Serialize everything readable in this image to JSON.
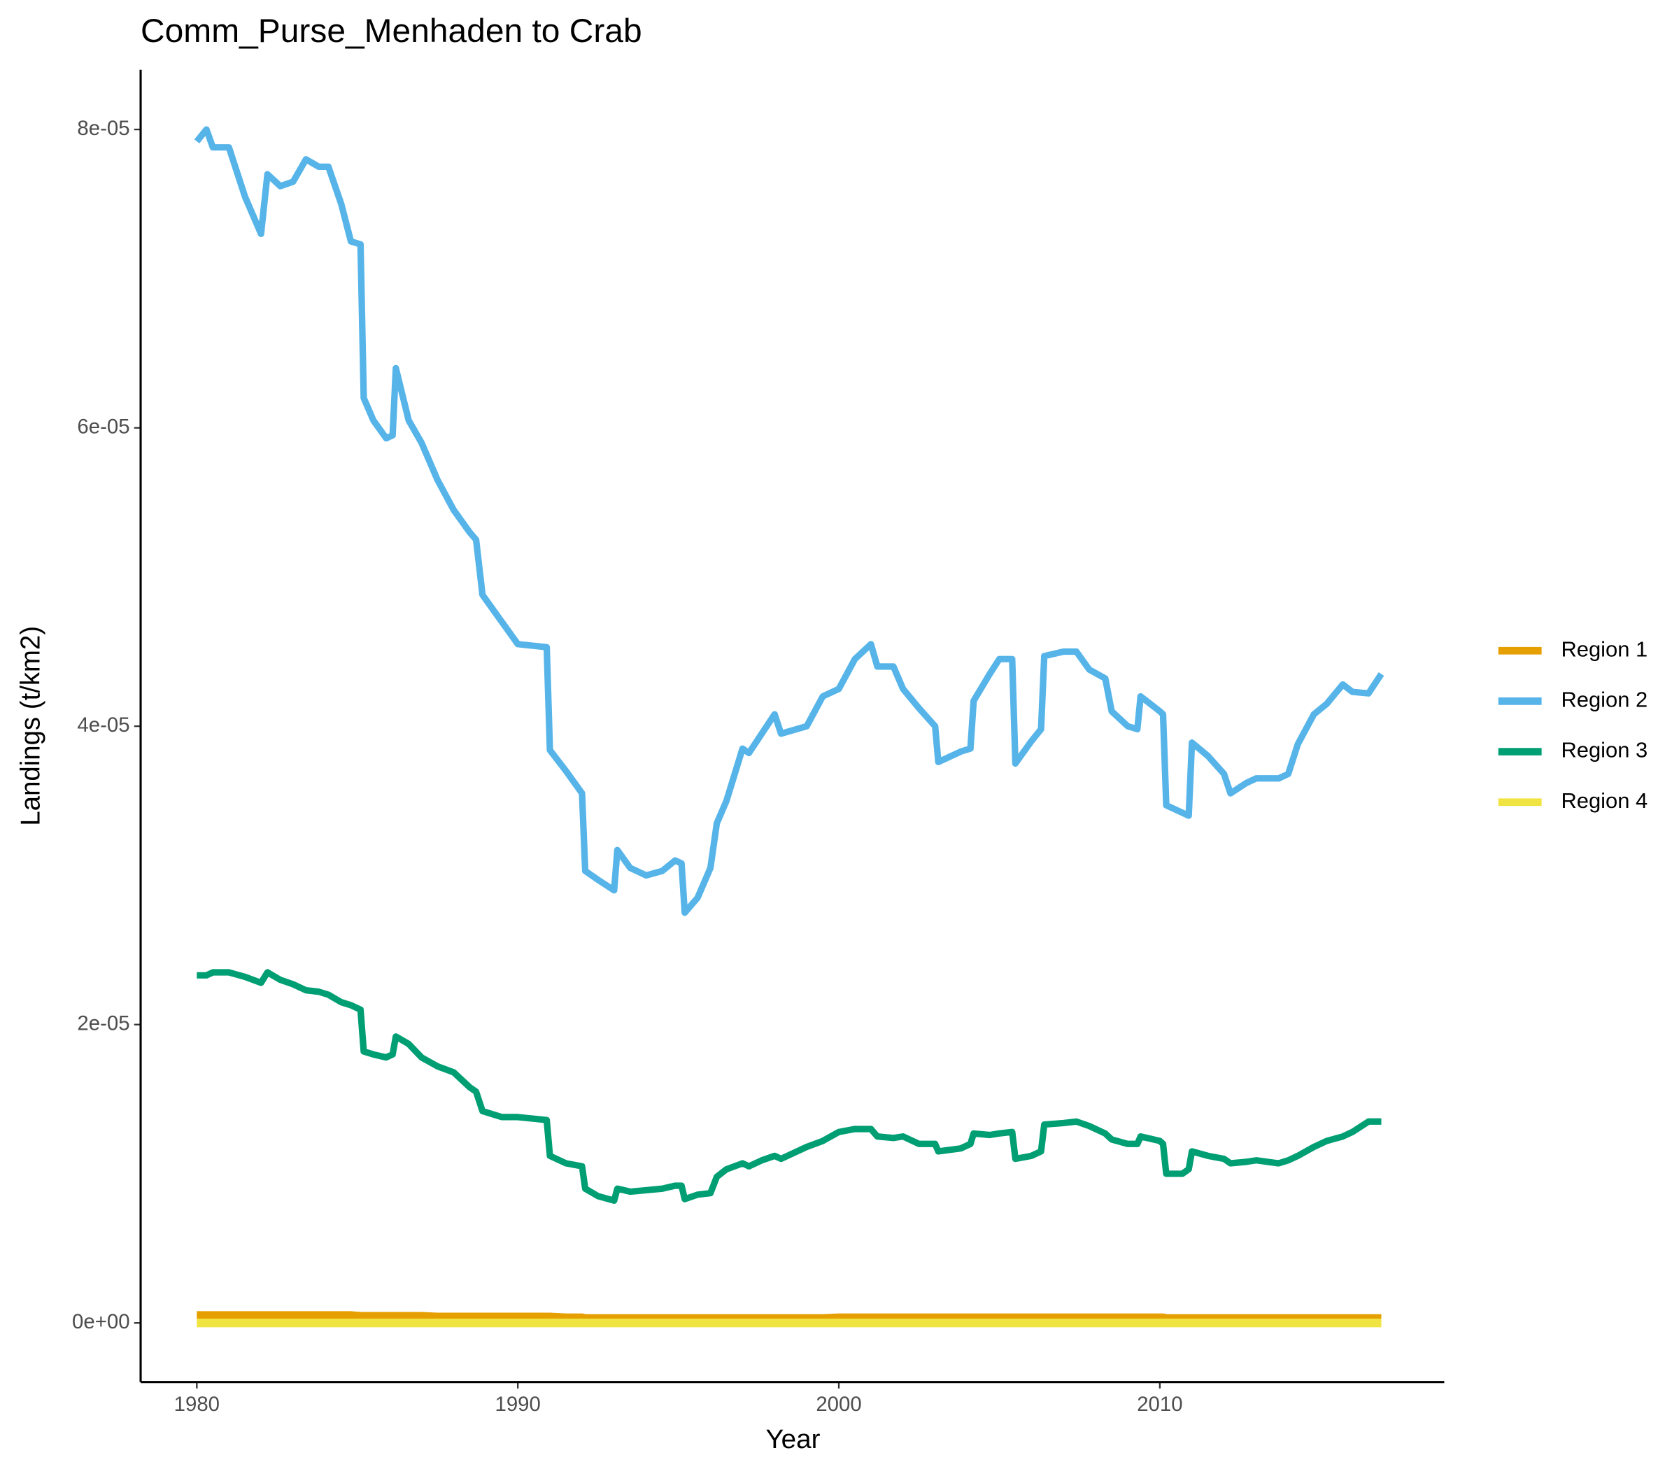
{
  "chart_data": {
    "type": "line",
    "title": "Comm_Purse_Menhaden to Crab",
    "x_label": "Year",
    "y_label": "Landings (t/km2)",
    "x": [
      1980.0,
      1980.3,
      1980.5,
      1981.0,
      1981.5,
      1982.0,
      1982.2,
      1982.6,
      1983.0,
      1983.4,
      1983.8,
      1984.1,
      1984.5,
      1984.8,
      1985.1,
      1985.2,
      1985.5,
      1985.9,
      1986.1,
      1986.2,
      1986.6,
      1987.0,
      1987.5,
      1988.0,
      1988.5,
      1988.7,
      1988.9,
      1989.5,
      1990.0,
      1990.9,
      1991.0,
      1991.5,
      1992.0,
      1992.1,
      1992.5,
      1993.0,
      1993.1,
      1993.5,
      1994.0,
      1994.5,
      1994.9,
      1995.1,
      1995.2,
      1995.6,
      1996.0,
      1996.2,
      1996.5,
      1997.0,
      1997.2,
      1997.6,
      1998.0,
      1998.2,
      1999.0,
      1999.5,
      2000.0,
      2000.5,
      2001.0,
      2001.2,
      2001.7,
      2002.0,
      2002.5,
      2003.0,
      2003.1,
      2003.8,
      2004.1,
      2004.2,
      2004.7,
      2005.0,
      2005.4,
      2005.5,
      2006.0,
      2006.3,
      2006.4,
      2007.0,
      2007.4,
      2007.8,
      2008.3,
      2008.5,
      2009.0,
      2009.3,
      2009.4,
      2010.0,
      2010.1,
      2010.2,
      2010.7,
      2010.9,
      2011.0,
      2011.5,
      2012.0,
      2012.2,
      2012.7,
      2013.0,
      2013.7,
      2014.0,
      2014.3,
      2014.8,
      2015.2,
      2015.7,
      2016.0,
      2016.5,
      2016.9
    ],
    "series": [
      {
        "name": "Region 1",
        "color": "#E69F00",
        "values": [
          5e-07,
          5e-07,
          5e-07,
          5e-07,
          5e-07,
          5e-07,
          5e-07,
          5e-07,
          5e-07,
          5e-07,
          5e-07,
          5e-07,
          5e-07,
          5e-07,
          4.5e-07,
          4.5e-07,
          4.5e-07,
          4.5e-07,
          4.5e-07,
          4.5e-07,
          4.5e-07,
          4.5e-07,
          4e-07,
          4e-07,
          4e-07,
          4e-07,
          4e-07,
          4e-07,
          4e-07,
          4e-07,
          4e-07,
          3.5e-07,
          3.5e-07,
          3e-07,
          3e-07,
          3e-07,
          3e-07,
          3e-07,
          3e-07,
          3e-07,
          3e-07,
          3e-07,
          3e-07,
          3e-07,
          3e-07,
          3e-07,
          3e-07,
          3e-07,
          3e-07,
          3e-07,
          3e-07,
          3e-07,
          3e-07,
          3e-07,
          3.5e-07,
          3.5e-07,
          3.5e-07,
          3.5e-07,
          3.5e-07,
          3.5e-07,
          3.5e-07,
          3.5e-07,
          3.5e-07,
          3.5e-07,
          3.5e-07,
          3.5e-07,
          3.5e-07,
          3.5e-07,
          3.5e-07,
          3.5e-07,
          3.5e-07,
          3.5e-07,
          3.5e-07,
          3.5e-07,
          3.5e-07,
          3.5e-07,
          3.5e-07,
          3.5e-07,
          3.5e-07,
          3.5e-07,
          3.5e-07,
          3.5e-07,
          3.5e-07,
          3e-07,
          3e-07,
          3e-07,
          3e-07,
          3e-07,
          3e-07,
          3e-07,
          3e-07,
          3e-07,
          3e-07,
          3e-07,
          3e-07,
          3e-07,
          3e-07,
          3e-07,
          3e-07,
          3e-07,
          3e-07
        ]
      },
      {
        "name": "Region 2",
        "color": "#56B4E9",
        "values": [
          7.92e-05,
          8e-05,
          7.88e-05,
          7.88e-05,
          7.55e-05,
          7.3e-05,
          7.7e-05,
          7.62e-05,
          7.65e-05,
          7.8e-05,
          7.75e-05,
          7.75e-05,
          7.5e-05,
          7.25e-05,
          7.23e-05,
          6.2e-05,
          6.05e-05,
          5.93e-05,
          5.95e-05,
          6.4e-05,
          6.05e-05,
          5.9e-05,
          5.65e-05,
          5.45e-05,
          5.3e-05,
          5.25e-05,
          4.88e-05,
          4.7e-05,
          4.55e-05,
          4.53e-05,
          3.84e-05,
          3.7e-05,
          3.55e-05,
          3.03e-05,
          2.97e-05,
          2.9e-05,
          3.17e-05,
          3.05e-05,
          3e-05,
          3.03e-05,
          3.1e-05,
          3.08e-05,
          2.75e-05,
          2.85e-05,
          3.05e-05,
          3.35e-05,
          3.5e-05,
          3.85e-05,
          3.82e-05,
          3.95e-05,
          4.08e-05,
          3.95e-05,
          4e-05,
          4.2e-05,
          4.25e-05,
          4.45e-05,
          4.55e-05,
          4.4e-05,
          4.4e-05,
          4.25e-05,
          4.12e-05,
          4e-05,
          3.76e-05,
          3.83e-05,
          3.85e-05,
          4.17e-05,
          4.35e-05,
          4.45e-05,
          4.45e-05,
          3.75e-05,
          3.9e-05,
          3.98e-05,
          4.47e-05,
          4.5e-05,
          4.5e-05,
          4.38e-05,
          4.32e-05,
          4.1e-05,
          4e-05,
          3.98e-05,
          4.2e-05,
          4.1e-05,
          4.08e-05,
          3.47e-05,
          3.42e-05,
          3.4e-05,
          3.89e-05,
          3.8e-05,
          3.68e-05,
          3.55e-05,
          3.62e-05,
          3.65e-05,
          3.65e-05,
          3.68e-05,
          3.88e-05,
          4.08e-05,
          4.15e-05,
          4.28e-05,
          4.23e-05,
          4.22e-05,
          4.35e-05
        ]
      },
      {
        "name": "Region 3",
        "color": "#009E73",
        "values": [
          2.33e-05,
          2.33e-05,
          2.35e-05,
          2.35e-05,
          2.32e-05,
          2.28e-05,
          2.35e-05,
          2.3e-05,
          2.27e-05,
          2.23e-05,
          2.22e-05,
          2.2e-05,
          2.15e-05,
          2.13e-05,
          2.1e-05,
          1.82e-05,
          1.8e-05,
          1.78e-05,
          1.8e-05,
          1.92e-05,
          1.87e-05,
          1.78e-05,
          1.72e-05,
          1.68e-05,
          1.58e-05,
          1.55e-05,
          1.42e-05,
          1.38e-05,
          1.38e-05,
          1.36e-05,
          1.12e-05,
          1.07e-05,
          1.05e-05,
          9e-06,
          8.5e-06,
          8.2e-06,
          9e-06,
          8.8e-06,
          8.9e-06,
          9e-06,
          9.2e-06,
          9.2e-06,
          8.3e-06,
          8.6e-06,
          8.7e-06,
          9.8e-06,
          1.03e-05,
          1.07e-05,
          1.05e-05,
          1.09e-05,
          1.12e-05,
          1.1e-05,
          1.18e-05,
          1.22e-05,
          1.28e-05,
          1.3e-05,
          1.3e-05,
          1.25e-05,
          1.24e-05,
          1.25e-05,
          1.2e-05,
          1.2e-05,
          1.15e-05,
          1.17e-05,
          1.2e-05,
          1.27e-05,
          1.26e-05,
          1.27e-05,
          1.28e-05,
          1.1e-05,
          1.12e-05,
          1.15e-05,
          1.33e-05,
          1.34e-05,
          1.35e-05,
          1.32e-05,
          1.27e-05,
          1.23e-05,
          1.2e-05,
          1.2e-05,
          1.25e-05,
          1.22e-05,
          1.2e-05,
          1e-05,
          1e-05,
          1.03e-05,
          1.15e-05,
          1.12e-05,
          1.1e-05,
          1.07e-05,
          1.08e-05,
          1.09e-05,
          1.07e-05,
          1.09e-05,
          1.12e-05,
          1.18e-05,
          1.22e-05,
          1.25e-05,
          1.28e-05,
          1.35e-05,
          1.35e-05
        ]
      },
      {
        "name": "Region 4",
        "color": "#F0E442",
        "values": [
          0,
          0,
          0,
          0,
          0,
          0,
          0,
          0,
          0,
          0,
          0,
          0,
          0,
          0,
          0,
          0,
          0,
          0,
          0,
          0,
          0,
          0,
          0,
          0,
          0,
          0,
          0,
          0,
          0,
          0,
          0,
          0,
          0,
          0,
          0,
          0,
          0,
          0,
          0,
          0,
          0,
          0,
          0,
          0,
          0,
          0,
          0,
          0,
          0,
          0,
          0,
          0,
          0,
          0,
          0,
          0,
          0,
          0,
          0,
          0,
          0,
          0,
          0,
          0,
          0,
          0,
          0,
          0,
          0,
          0,
          0,
          0,
          0,
          0,
          0,
          0,
          0,
          0,
          0,
          0,
          0,
          0,
          0,
          0,
          0,
          0,
          0,
          0,
          0,
          0,
          0,
          0,
          0,
          0,
          0,
          0,
          0,
          0,
          0,
          0,
          0
        ]
      }
    ],
    "xlim": [
      1978.25,
      2018.86
    ],
    "xticks": [
      1980,
      1990,
      2000,
      2010
    ],
    "ylim": [
      -3.96e-06,
      8.4e-05
    ],
    "yticks": [
      {
        "value": 0,
        "label": "0e+00"
      },
      {
        "value": 2e-05,
        "label": "2e-05"
      },
      {
        "value": 4e-05,
        "label": "4e-05"
      },
      {
        "value": 6e-05,
        "label": "6e-05"
      },
      {
        "value": 8e-05,
        "label": "8e-05"
      }
    ],
    "grid": false,
    "legend": "right"
  }
}
